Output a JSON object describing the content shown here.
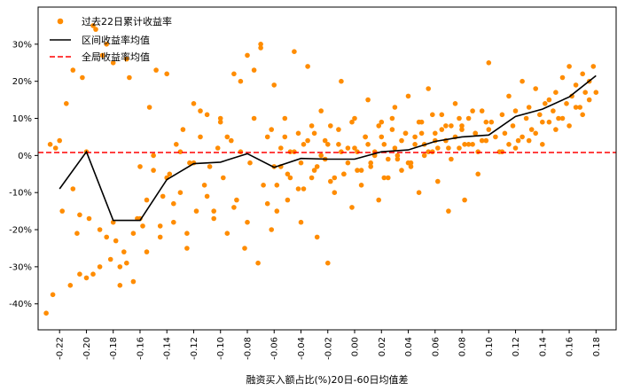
{
  "chart_data": {
    "type": "scatter",
    "title": "",
    "xlabel": "融资买入额占比(%)20日-60日均值差",
    "ylabel": "",
    "xlim": [
      -0.236,
      0.195
    ],
    "ylim": [
      -0.47,
      0.4
    ],
    "x_ticks": [
      -0.22,
      -0.2,
      -0.18,
      -0.16,
      -0.14,
      -0.12,
      -0.1,
      -0.08,
      -0.06,
      -0.04,
      -0.02,
      0.0,
      0.02,
      0.04,
      0.06,
      0.08,
      0.1,
      0.12,
      0.14,
      0.16,
      0.18
    ],
    "x_tick_labels": [
      "-0.22",
      "-0.20",
      "-0.18",
      "-0.16",
      "-0.14",
      "-0.12",
      "-0.10",
      "-0.08",
      "-0.06",
      "-0.04",
      "-0.02",
      "0.00",
      "0.02",
      "0.04",
      "0.06",
      "0.08",
      "0.10",
      "0.12",
      "0.14",
      "0.16",
      "0.18"
    ],
    "y_ticks": [
      -0.4,
      -0.3,
      -0.2,
      -0.1,
      0.0,
      0.1,
      0.2,
      0.3
    ],
    "y_tick_labels": [
      "-40%",
      "-30%",
      "-20%",
      "-10%",
      "0%",
      "10%",
      "20%",
      "30%"
    ],
    "legend": {
      "position": "top-left",
      "entries": [
        "过去22日累计收益率",
        "区间收益率均值",
        "全局收益率均值"
      ]
    },
    "series": [
      {
        "name": "过去22日累计收益率",
        "kind": "scatter",
        "color": "#ff8c00",
        "x": [
          -0.23,
          -0.227,
          -0.225,
          -0.223,
          -0.22,
          -0.218,
          -0.215,
          -0.212,
          -0.21,
          -0.207,
          -0.205,
          -0.203,
          -0.2,
          -0.198,
          -0.195,
          -0.193,
          -0.19,
          -0.188,
          -0.185,
          -0.182,
          -0.18,
          -0.178,
          -0.175,
          -0.172,
          -0.17,
          -0.168,
          -0.165,
          -0.162,
          -0.16,
          -0.158,
          -0.155,
          -0.153,
          -0.15,
          -0.148,
          -0.145,
          -0.143,
          -0.14,
          -0.138,
          -0.135,
          -0.133,
          -0.13,
          -0.128,
          -0.125,
          -0.123,
          -0.12,
          -0.118,
          -0.115,
          -0.112,
          -0.11,
          -0.108,
          -0.105,
          -0.102,
          -0.1,
          -0.098,
          -0.095,
          -0.092,
          -0.09,
          -0.088,
          -0.085,
          -0.082,
          -0.08,
          -0.078,
          -0.075,
          -0.072,
          -0.07,
          -0.068,
          -0.065,
          -0.062,
          -0.06,
          -0.058,
          -0.055,
          -0.052,
          -0.05,
          -0.048,
          -0.045,
          -0.042,
          -0.04,
          -0.038,
          -0.035,
          -0.032,
          -0.03,
          -0.028,
          -0.025,
          -0.022,
          -0.02,
          -0.018,
          -0.015,
          -0.012,
          -0.01,
          -0.008,
          -0.005,
          -0.002,
          0.0,
          0.002,
          0.005,
          0.008,
          0.01,
          0.012,
          0.015,
          0.018,
          0.02,
          0.022,
          0.025,
          0.028,
          0.03,
          0.032,
          0.035,
          0.038,
          0.04,
          0.042,
          0.045,
          0.048,
          0.05,
          0.052,
          0.055,
          0.058,
          0.06,
          0.062,
          0.065,
          0.068,
          0.07,
          0.072,
          0.075,
          0.078,
          0.08,
          0.082,
          0.085,
          0.088,
          0.09,
          0.092,
          0.095,
          0.098,
          0.1,
          0.102,
          0.105,
          0.108,
          0.11,
          0.112,
          0.115,
          0.118,
          0.12,
          0.122,
          0.125,
          0.128,
          0.13,
          0.132,
          0.135,
          0.138,
          0.14,
          0.142,
          0.145,
          0.148,
          0.15,
          0.152,
          0.155,
          0.158,
          0.16,
          0.162,
          0.165,
          0.168,
          0.17,
          0.172,
          0.175,
          0.178,
          -0.06,
          -0.055,
          -0.05,
          -0.045,
          -0.04,
          -0.035,
          -0.03,
          -0.025,
          -0.02,
          -0.015,
          -0.01,
          -0.005,
          0.0,
          0.005,
          0.01,
          0.015,
          0.02,
          0.025,
          0.03,
          0.035,
          0.04,
          0.045,
          0.05,
          0.055,
          0.06,
          0.065,
          0.07,
          0.075,
          0.08,
          0.085,
          0.09,
          0.095,
          0.1,
          -0.058,
          -0.048,
          -0.038,
          -0.028,
          -0.018,
          -0.008,
          0.002,
          0.012,
          0.022,
          0.032,
          0.042,
          0.052,
          0.062,
          0.072,
          0.082,
          0.092,
          -0.062,
          -0.052,
          -0.042,
          -0.032,
          -0.022,
          -0.012,
          -0.002,
          0.008,
          0.018,
          0.028,
          0.038,
          0.048,
          0.058,
          0.068,
          0.078,
          0.088,
          0.098,
          -0.21,
          -0.205,
          -0.2,
          -0.195,
          -0.19,
          -0.185,
          -0.18,
          -0.175,
          -0.17,
          -0.165,
          -0.16,
          -0.155,
          -0.15,
          -0.145,
          -0.14,
          -0.135,
          -0.13,
          -0.125,
          -0.12,
          -0.115,
          -0.11,
          -0.105,
          -0.1,
          -0.095,
          -0.09,
          -0.085,
          -0.08,
          -0.075,
          -0.07,
          -0.065,
          0.11,
          0.115,
          0.12,
          0.125,
          0.13,
          0.135,
          0.14,
          0.145,
          0.15,
          0.155,
          0.16,
          0.165,
          0.17,
          0.175,
          0.18
        ],
        "y": [
          -0.425,
          0.03,
          -0.375,
          0.02,
          0.04,
          -0.15,
          0.14,
          -0.35,
          0.23,
          -0.21,
          -0.32,
          0.21,
          0.01,
          -0.17,
          -0.32,
          0.34,
          -0.3,
          0.27,
          -0.22,
          -0.28,
          0.25,
          -0.23,
          -0.35,
          -0.26,
          -0.29,
          0.21,
          -0.21,
          -0.17,
          -0.03,
          -0.19,
          -0.12,
          0.13,
          -0.04,
          0.23,
          -0.22,
          -0.11,
          0.22,
          -0.05,
          -0.18,
          0.03,
          -0.1,
          0.07,
          -0.25,
          -0.02,
          0.14,
          -0.15,
          0.05,
          -0.08,
          0.11,
          -0.03,
          -0.17,
          0.02,
          0.09,
          -0.06,
          -0.21,
          0.04,
          0.22,
          -0.12,
          0.01,
          -0.25,
          0.27,
          -0.02,
          0.1,
          -0.29,
          0.3,
          -0.08,
          0.05,
          -0.2,
          0.19,
          -0.15,
          -0.03,
          0.1,
          -0.12,
          0.01,
          0.28,
          -0.09,
          -0.18,
          0.03,
          0.24,
          -0.06,
          0.06,
          -0.22,
          0.12,
          -0.01,
          -0.29,
          0.08,
          -0.1,
          0.03,
          0.2,
          -0.05,
          0.02,
          -0.14,
          0.1,
          0.01,
          -0.08,
          0.05,
          0.15,
          -0.03,
          0.01,
          -0.12,
          0.09,
          0.03,
          -0.06,
          0.07,
          0.13,
          0.0,
          -0.04,
          0.06,
          0.16,
          -0.02,
          0.05,
          -0.1,
          0.09,
          0.03,
          0.18,
          0.01,
          0.06,
          -0.07,
          0.11,
          0.04,
          -0.15,
          0.08,
          0.14,
          0.02,
          0.07,
          -0.12,
          0.1,
          0.03,
          0.06,
          -0.05,
          0.12,
          0.04,
          0.25,
          0.09,
          0.05,
          0.01,
          0.11,
          0.06,
          0.16,
          0.08,
          0.12,
          0.04,
          0.2,
          0.1,
          0.13,
          0.07,
          0.18,
          0.11,
          0.09,
          0.14,
          0.15,
          0.12,
          0.17,
          0.1,
          0.21,
          0.14,
          0.24,
          0.16,
          0.19,
          0.13,
          0.22,
          0.17,
          0.2,
          0.24,
          -0.03,
          0.02,
          -0.05,
          0.01,
          -0.02,
          0.04,
          -0.04,
          0.0,
          0.03,
          -0.06,
          0.01,
          -0.02,
          0.02,
          -0.04,
          0.03,
          0.0,
          0.05,
          -0.01,
          0.02,
          0.04,
          -0.02,
          0.03,
          0.06,
          0.01,
          0.04,
          0.07,
          0.02,
          0.05,
          0.08,
          0.03,
          0.06,
          0.04,
          0.07,
          -0.08,
          -0.06,
          -0.09,
          -0.03,
          -0.07,
          -0.05,
          -0.04,
          -0.02,
          -0.06,
          -0.01,
          -0.03,
          0.0,
          0.02,
          -0.01,
          0.03,
          0.01,
          0.07,
          0.05,
          0.06,
          0.08,
          0.04,
          0.07,
          0.09,
          0.05,
          0.08,
          0.1,
          0.06,
          0.09,
          0.11,
          0.08,
          0.1,
          0.12,
          0.09,
          -0.09,
          -0.16,
          -0.33,
          0.35,
          -0.2,
          0.3,
          -0.18,
          -0.3,
          0.26,
          -0.34,
          -0.17,
          -0.26,
          0.0,
          -0.19,
          -0.06,
          -0.13,
          0.01,
          -0.21,
          -0.02,
          0.12,
          -0.11,
          -0.15,
          0.1,
          0.05,
          -0.14,
          0.2,
          -0.18,
          0.23,
          0.29,
          -0.13,
          0.01,
          0.03,
          0.02,
          0.05,
          0.04,
          0.06,
          0.03,
          0.09,
          0.07,
          0.1,
          0.08,
          0.13,
          0.11,
          0.15,
          0.17
        ]
      },
      {
        "name": "区间收益率均值",
        "kind": "line",
        "color": "#000000",
        "x": [
          -0.22,
          -0.2,
          -0.18,
          -0.16,
          -0.14,
          -0.12,
          -0.1,
          -0.08,
          -0.06,
          -0.04,
          -0.02,
          0.0,
          0.02,
          0.04,
          0.06,
          0.08,
          0.1,
          0.12,
          0.14,
          0.16,
          0.18
        ],
        "y": [
          -0.09,
          0.01,
          -0.175,
          -0.175,
          -0.065,
          -0.022,
          -0.018,
          0.005,
          -0.032,
          -0.008,
          -0.01,
          -0.01,
          0.01,
          0.015,
          0.038,
          0.05,
          0.055,
          0.105,
          0.125,
          0.158,
          0.215
        ]
      },
      {
        "name": "全局收益率均值",
        "kind": "hline",
        "color": "#ff0000",
        "y": 0.008
      }
    ]
  }
}
